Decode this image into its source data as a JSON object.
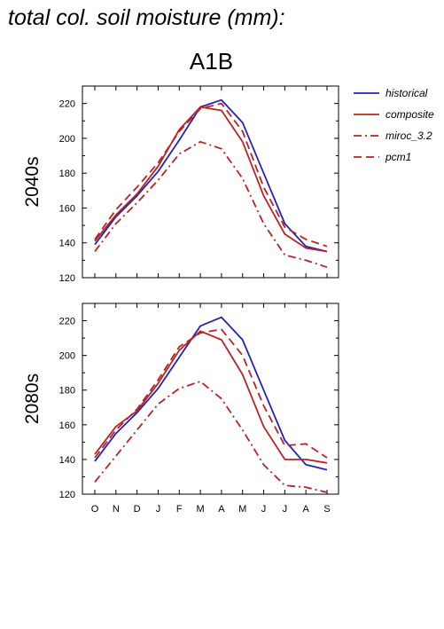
{
  "figure": {
    "title": "total col. soil moisture (mm):",
    "scenario": "A1B"
  },
  "legend": [
    {
      "label": "historical",
      "color": "#2222bb",
      "style": "solid"
    },
    {
      "label": "composite",
      "color": "#bb2222",
      "style": "solid"
    },
    {
      "label": "miroc_3.2",
      "color": "#bb2222",
      "style": "dashdot"
    },
    {
      "label": "pcm1",
      "color": "#bb2222",
      "style": "dashed"
    }
  ],
  "chart_data": [
    {
      "type": "line",
      "panel_label": "2040s",
      "categories": [
        "O",
        "N",
        "D",
        "J",
        "F",
        "M",
        "A",
        "M",
        "J",
        "J",
        "A",
        "S"
      ],
      "ylim": [
        120,
        230
      ],
      "yticks": [
        120,
        140,
        160,
        180,
        200,
        220
      ],
      "grid": false,
      "legend_position": "right",
      "series": [
        {
          "name": "historical",
          "values": [
            139,
            155,
            167,
            181,
            199,
            218,
            222,
            209,
            180,
            151,
            138,
            135
          ]
        },
        {
          "name": "composite",
          "values": [
            141,
            156,
            168,
            184,
            205,
            218,
            216,
            198,
            167,
            145,
            137,
            135
          ]
        },
        {
          "name": "miroc_3.2",
          "values": [
            135,
            151,
            163,
            176,
            191,
            198,
            194,
            177,
            151,
            133,
            130,
            126
          ]
        },
        {
          "name": "pcm1",
          "values": [
            142,
            159,
            172,
            186,
            204,
            217,
            220,
            204,
            172,
            149,
            142,
            138
          ]
        }
      ]
    },
    {
      "type": "line",
      "panel_label": "2080s",
      "categories": [
        "O",
        "N",
        "D",
        "J",
        "F",
        "M",
        "A",
        "M",
        "J",
        "J",
        "A",
        "S"
      ],
      "ylim": [
        120,
        230
      ],
      "yticks": [
        120,
        140,
        160,
        180,
        200,
        220
      ],
      "grid": false,
      "legend_position": "right",
      "series": [
        {
          "name": "historical",
          "values": [
            139,
            155,
            167,
            181,
            199,
            217,
            222,
            209,
            180,
            151,
            137,
            134
          ]
        },
        {
          "name": "composite",
          "values": [
            143,
            159,
            168,
            184,
            203,
            214,
            209,
            189,
            159,
            140,
            140,
            138
          ]
        },
        {
          "name": "miroc_3.2",
          "values": [
            127,
            142,
            157,
            172,
            181,
            185,
            175,
            157,
            137,
            125,
            124,
            121
          ]
        },
        {
          "name": "pcm1",
          "values": [
            141,
            157,
            169,
            186,
            205,
            213,
            215,
            200,
            171,
            148,
            149,
            141
          ]
        }
      ]
    }
  ]
}
